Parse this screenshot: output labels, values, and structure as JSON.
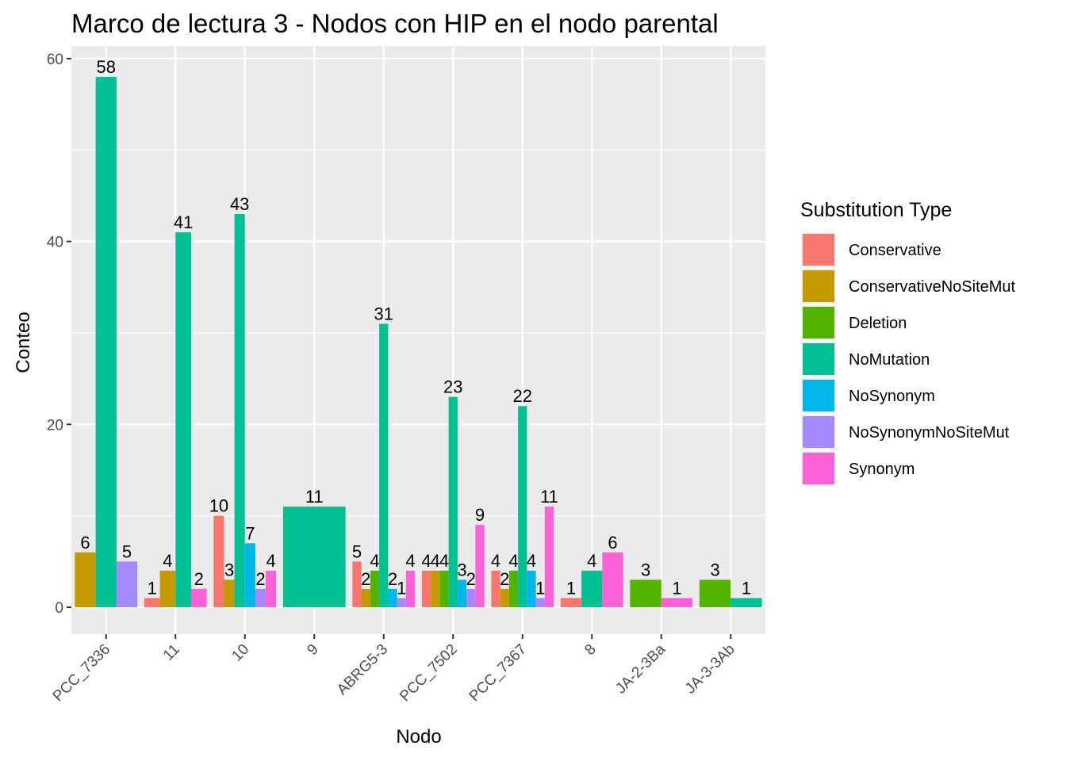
{
  "chart_data": {
    "type": "bar",
    "title": "Marco de lectura 3 - Nodos con HIP en el nodo parental",
    "xlabel": "Nodo",
    "ylabel": "Conteo",
    "ylim": [
      0,
      60
    ],
    "yticks": [
      0,
      20,
      40,
      60
    ],
    "grid": true,
    "legend_position": "right",
    "legend_title": "Substitution Type",
    "series": [
      {
        "name": "Conservative",
        "color": "#F8766D"
      },
      {
        "name": "ConservativeNoSiteMut",
        "color": "#C49A00"
      },
      {
        "name": "Deletion",
        "color": "#53B400"
      },
      {
        "name": "NoMutation",
        "color": "#00C094"
      },
      {
        "name": "NoSynonym",
        "color": "#00B6EB"
      },
      {
        "name": "NoSynonymNoSiteMut",
        "color": "#A58AFF"
      },
      {
        "name": "Synonym",
        "color": "#FB61D7"
      }
    ],
    "categories": [
      "PCC_7336",
      "11",
      "10",
      "9",
      "ABRG5-3",
      "PCC_7502",
      "PCC_7367",
      "8",
      "JA-2-3Ba",
      "JA-3-3Ab"
    ],
    "groups": [
      {
        "category": "PCC_7336",
        "bars": [
          {
            "series": "ConservativeNoSiteMut",
            "value": 6
          },
          {
            "series": "NoMutation",
            "value": 58
          },
          {
            "series": "NoSynonymNoSiteMut",
            "value": 5
          }
        ]
      },
      {
        "category": "11",
        "bars": [
          {
            "series": "Conservative",
            "value": 1
          },
          {
            "series": "ConservativeNoSiteMut",
            "value": 4
          },
          {
            "series": "NoMutation",
            "value": 41
          },
          {
            "series": "Synonym",
            "value": 2
          }
        ]
      },
      {
        "category": "10",
        "bars": [
          {
            "series": "Conservative",
            "value": 10
          },
          {
            "series": "ConservativeNoSiteMut",
            "value": 3
          },
          {
            "series": "NoMutation",
            "value": 43
          },
          {
            "series": "NoSynonym",
            "value": 7
          },
          {
            "series": "NoSynonymNoSiteMut",
            "value": 2
          },
          {
            "series": "Synonym",
            "value": 4
          }
        ]
      },
      {
        "category": "9",
        "bars": [
          {
            "series": "NoMutation",
            "value": 11
          }
        ]
      },
      {
        "category": "ABRG5-3",
        "bars": [
          {
            "series": "Conservative",
            "value": 5
          },
          {
            "series": "ConservativeNoSiteMut",
            "value": 2
          },
          {
            "series": "Deletion",
            "value": 4
          },
          {
            "series": "NoMutation",
            "value": 31
          },
          {
            "series": "NoSynonym",
            "value": 2
          },
          {
            "series": "NoSynonymNoSiteMut",
            "value": 1
          },
          {
            "series": "Synonym",
            "value": 4
          }
        ]
      },
      {
        "category": "PCC_7502",
        "bars": [
          {
            "series": "Conservative",
            "value": 4
          },
          {
            "series": "ConservativeNoSiteMut",
            "value": 4
          },
          {
            "series": "Deletion",
            "value": 4
          },
          {
            "series": "NoMutation",
            "value": 23
          },
          {
            "series": "NoSynonym",
            "value": 3
          },
          {
            "series": "NoSynonymNoSiteMut",
            "value": 2
          },
          {
            "series": "Synonym",
            "value": 9
          }
        ]
      },
      {
        "category": "PCC_7367",
        "bars": [
          {
            "series": "Conservative",
            "value": 4
          },
          {
            "series": "ConservativeNoSiteMut",
            "value": 2
          },
          {
            "series": "Deletion",
            "value": 4
          },
          {
            "series": "NoMutation",
            "value": 22
          },
          {
            "series": "NoSynonym",
            "value": 4
          },
          {
            "series": "NoSynonymNoSiteMut",
            "value": 1
          },
          {
            "series": "Synonym",
            "value": 11
          }
        ]
      },
      {
        "category": "8",
        "bars": [
          {
            "series": "Conservative",
            "value": 1
          },
          {
            "series": "NoMutation",
            "value": 4
          },
          {
            "series": "Synonym",
            "value": 6
          }
        ]
      },
      {
        "category": "JA-2-3Ba",
        "bars": [
          {
            "series": "Deletion",
            "value": 3
          },
          {
            "series": "Synonym",
            "value": 1
          }
        ]
      },
      {
        "category": "JA-3-3Ab",
        "bars": [
          {
            "series": "Deletion",
            "value": 3
          },
          {
            "series": "NoMutation",
            "value": 1
          }
        ]
      }
    ]
  }
}
